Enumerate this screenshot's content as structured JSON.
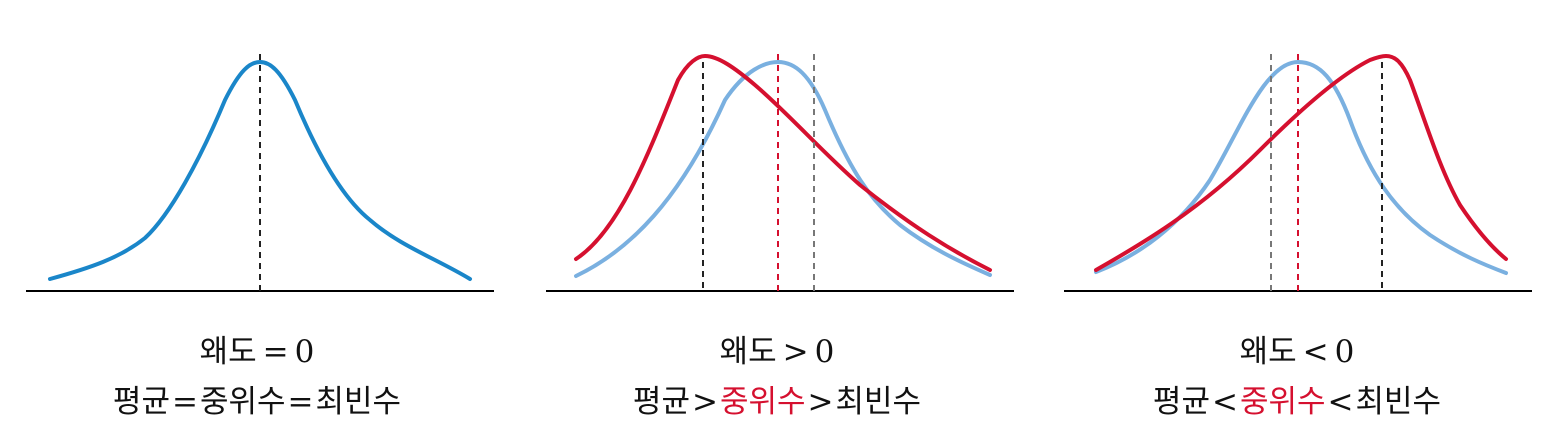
{
  "colors": {
    "symmetric_curve": "#1a86c9",
    "skewed_curve": "#d5102f",
    "reference_curve": "#7ab0e0",
    "axis": "#000000",
    "mean_line": "#222222",
    "median_line": "#d5102f",
    "mode_line": "#777777",
    "highlight_text": "#d5102f"
  },
  "panels": [
    {
      "skew_label": "왜도",
      "skew_op": "=",
      "skew_value": "0",
      "mean_label": "평균",
      "op1": "=",
      "median_label": "중위수",
      "op2": "=",
      "mode_label": "최빈수"
    },
    {
      "skew_label": "왜도",
      "skew_op": ">",
      "skew_value": "0",
      "mean_label": "평균",
      "op1": ">",
      "median_label": "중위수",
      "op2": ">",
      "mode_label": "최빈수"
    },
    {
      "skew_label": "왜도",
      "skew_op": "<",
      "skew_value": "0",
      "mean_label": "평균",
      "op1": "<",
      "median_label": "중위수",
      "op2": "<",
      "mode_label": "최빈수"
    }
  ]
}
